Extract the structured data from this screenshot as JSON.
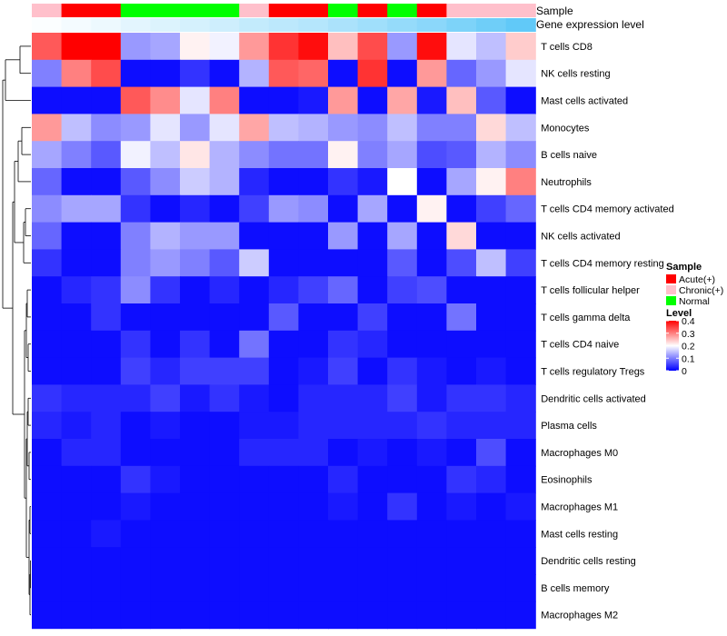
{
  "chart_data": {
    "type": "heatmap",
    "annotation_tracks": [
      {
        "label": "Sample",
        "values": [
          "Chronic(+)",
          "Acute(+)",
          "Acute(+)",
          "Normal",
          "Normal",
          "Normal",
          "Normal",
          "Chronic(+)",
          "Acute(+)",
          "Acute(+)",
          "Normal",
          "Acute(+)",
          "Normal",
          "Acute(+)",
          "Chronic(+)",
          "Chronic(+)",
          "Chronic(+)"
        ]
      },
      {
        "label": "Gene expression level",
        "values": [
          0.02,
          0.06,
          0.1,
          0.16,
          0.2,
          0.24,
          0.28,
          0.34,
          0.38,
          0.42,
          0.48,
          0.54,
          0.6,
          0.66,
          0.74,
          0.82,
          0.9
        ]
      }
    ],
    "rows": [
      "T cells CD8",
      "NK cells resting",
      "Mast cells activated",
      "Monocytes",
      "B cells naive",
      "Neutrophils",
      "T cells CD4 memory activated",
      "NK cells activated",
      "T cells CD4 memory resting",
      "T cells follicular helper",
      "T cells gamma delta",
      "T cells CD4 naive",
      "T cells regulatory  Tregs",
      "Dendritic cells activated",
      "Plasma cells",
      "Macrophages M0",
      "Eosinophils",
      "Macrophages M1",
      "Mast cells resting",
      "Dendritic cells resting",
      "B cells memory",
      "Macrophages M2"
    ],
    "values": [
      [
        0.33,
        0.4,
        0.4,
        0.12,
        0.13,
        0.21,
        0.19,
        0.28,
        0.36,
        0.39,
        0.25,
        0.34,
        0.12,
        0.39,
        0.18,
        0.15,
        0.24
      ],
      [
        0.1,
        0.3,
        0.34,
        0.01,
        0.01,
        0.04,
        0.01,
        0.14,
        0.33,
        0.32,
        0.01,
        0.36,
        0.01,
        0.28,
        0.08,
        0.12,
        0.18
      ],
      [
        0.01,
        0.01,
        0.01,
        0.33,
        0.29,
        0.18,
        0.3,
        0.01,
        0.01,
        0.02,
        0.28,
        0.01,
        0.27,
        0.02,
        0.25,
        0.07,
        0.01
      ],
      [
        0.28,
        0.15,
        0.11,
        0.12,
        0.18,
        0.12,
        0.18,
        0.27,
        0.15,
        0.14,
        0.12,
        0.11,
        0.15,
        0.1,
        0.1,
        0.23,
        0.15
      ],
      [
        0.13,
        0.1,
        0.07,
        0.19,
        0.15,
        0.22,
        0.14,
        0.11,
        0.09,
        0.09,
        0.21,
        0.1,
        0.13,
        0.06,
        0.07,
        0.14,
        0.11
      ],
      [
        0.08,
        0.01,
        0.01,
        0.07,
        0.11,
        0.16,
        0.14,
        0.03,
        0.01,
        0.01,
        0.04,
        0.02,
        0.2,
        0.01,
        0.13,
        0.21,
        0.3
      ],
      [
        0.11,
        0.13,
        0.13,
        0.04,
        0.01,
        0.03,
        0.01,
        0.05,
        0.12,
        0.11,
        0.01,
        0.13,
        0.01,
        0.21,
        0.01,
        0.05,
        0.08
      ],
      [
        0.08,
        0.01,
        0.01,
        0.1,
        0.14,
        0.12,
        0.12,
        0.01,
        0.01,
        0.01,
        0.12,
        0.01,
        0.13,
        0.01,
        0.23,
        0.01,
        0.01
      ],
      [
        0.04,
        0.01,
        0.01,
        0.1,
        0.12,
        0.1,
        0.07,
        0.16,
        0.01,
        0.01,
        0.01,
        0.01,
        0.07,
        0.01,
        0.06,
        0.15,
        0.05
      ],
      [
        0.01,
        0.03,
        0.04,
        0.11,
        0.04,
        0.01,
        0.03,
        0.01,
        0.03,
        0.05,
        0.08,
        0.01,
        0.05,
        0.06,
        0.01,
        0.01,
        0.01
      ],
      [
        0.01,
        0.01,
        0.04,
        0.01,
        0.01,
        0.01,
        0.01,
        0.01,
        0.07,
        0.01,
        0.01,
        0.05,
        0.01,
        0.01,
        0.09,
        0.01,
        0.01
      ],
      [
        0.01,
        0.01,
        0.01,
        0.04,
        0.01,
        0.04,
        0.01,
        0.09,
        0.01,
        0.01,
        0.04,
        0.03,
        0.01,
        0.01,
        0.01,
        0.01,
        0.01
      ],
      [
        0.01,
        0.01,
        0.01,
        0.05,
        0.03,
        0.05,
        0.05,
        0.05,
        0.01,
        0.02,
        0.05,
        0.01,
        0.04,
        0.02,
        0.01,
        0.02,
        0.01
      ],
      [
        0.04,
        0.03,
        0.03,
        0.03,
        0.05,
        0.02,
        0.04,
        0.02,
        0.01,
        0.03,
        0.03,
        0.03,
        0.05,
        0.02,
        0.04,
        0.04,
        0.03
      ],
      [
        0.03,
        0.02,
        0.03,
        0.01,
        0.02,
        0.01,
        0.01,
        0.02,
        0.02,
        0.03,
        0.03,
        0.03,
        0.03,
        0.04,
        0.03,
        0.03,
        0.03
      ],
      [
        0.01,
        0.03,
        0.03,
        0.01,
        0.01,
        0.01,
        0.01,
        0.03,
        0.03,
        0.03,
        0.01,
        0.02,
        0.01,
        0.02,
        0.01,
        0.06,
        0.01
      ],
      [
        0.01,
        0.01,
        0.01,
        0.04,
        0.02,
        0.01,
        0.01,
        0.01,
        0.01,
        0.01,
        0.03,
        0.01,
        0.01,
        0.01,
        0.04,
        0.03,
        0.01
      ],
      [
        0.01,
        0.01,
        0.01,
        0.02,
        0.01,
        0.01,
        0.01,
        0.01,
        0.01,
        0.01,
        0.02,
        0.01,
        0.04,
        0.01,
        0.02,
        0.01,
        0.02
      ],
      [
        0.01,
        0.01,
        0.02,
        0.01,
        0.01,
        0.01,
        0.01,
        0.01,
        0.01,
        0.01,
        0.01,
        0.01,
        0.01,
        0.01,
        0.01,
        0.01,
        0.01
      ],
      [
        0.01,
        0.01,
        0.01,
        0.01,
        0.01,
        0.01,
        0.01,
        0.01,
        0.01,
        0.01,
        0.01,
        0.01,
        0.01,
        0.01,
        0.01,
        0.01,
        0.01
      ],
      [
        0.01,
        0.01,
        0.01,
        0.01,
        0.01,
        0.01,
        0.01,
        0.01,
        0.01,
        0.01,
        0.01,
        0.01,
        0.01,
        0.01,
        0.01,
        0.01,
        0.01
      ],
      [
        0.01,
        0.01,
        0.01,
        0.01,
        0.01,
        0.01,
        0.01,
        0.01,
        0.01,
        0.01,
        0.01,
        0.01,
        0.01,
        0.01,
        0.01,
        0.01,
        0.01
      ]
    ],
    "color_scale": {
      "min": 0,
      "mid": 0.2,
      "max": 0.4,
      "low_color": "#0000ff",
      "mid_color": "#ffffff",
      "high_color": "#ff0000"
    },
    "row_dendrogram": true,
    "legend": {
      "position": "right",
      "sample_title": "Sample",
      "sample_entries": [
        {
          "label": "Acute(+)",
          "color": "#ff0000"
        },
        {
          "label": "Chronic(+)",
          "color": "#ffc0cb"
        },
        {
          "label": "Normal",
          "color": "#00ff00"
        }
      ],
      "level_title": "Level",
      "level_ticks": [
        "0.4",
        "0.3",
        "0.2",
        "0.1",
        "0"
      ],
      "level_tick_values": [
        0.4,
        0.3,
        0.2,
        0.1,
        0
      ]
    },
    "expression_gradient": {
      "low_color": "#ffffff",
      "high_color": "#4fc3f7"
    }
  }
}
